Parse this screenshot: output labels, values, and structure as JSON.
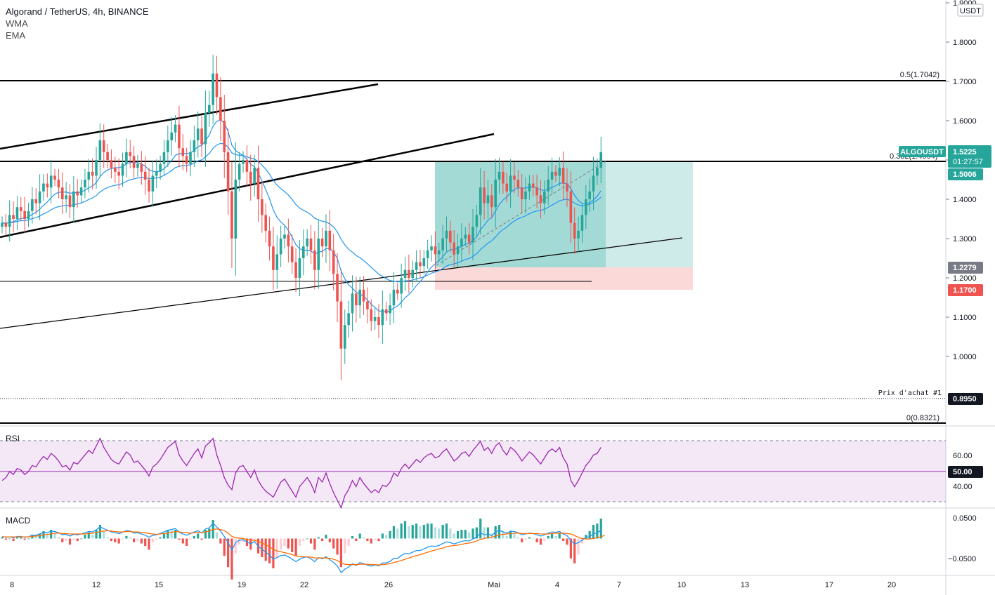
{
  "header": {
    "title": "Algorand / TetherUS, 4h, BINANCE",
    "indicators": [
      "WMA",
      "EMA"
    ],
    "currency": "USDT"
  },
  "price_axis": {
    "ticks": [
      "1.9000",
      "1.8000",
      "1.7000",
      "1.6000",
      "1.5000",
      "1.4000",
      "1.3000",
      "1.2000",
      "1.1000",
      "1.0000"
    ]
  },
  "time_axis": {
    "ticks": [
      "8",
      "12",
      "15",
      "19",
      "22",
      "26",
      "Mai",
      "4",
      "7",
      "10",
      "13",
      "17",
      "20"
    ]
  },
  "levels": {
    "fib_top_label": "0.5(1.7042)",
    "fib_mid_label": "0.382(1.4994)",
    "fib_bottom_label": "0(0.8321)",
    "buy_label": "Prix d'achat #1"
  },
  "tags": {
    "symbol": "ALGOUSDT",
    "last_price": "1.5225",
    "countdown": "01:27:57",
    "target": "1.5006",
    "entry": "1.2279",
    "stop": "1.1700",
    "buy_price": "0.8950",
    "rsi_mid": "50.00"
  },
  "rsi": {
    "title": "RSI",
    "ticks": [
      "60.00",
      "40.00"
    ]
  },
  "macd": {
    "title": "MACD",
    "ticks": [
      "0.0500",
      "−0.0500"
    ]
  },
  "colors": {
    "up": "#26a69a",
    "down": "#ef5350",
    "ma": "#2196f3",
    "rsi": "#9c27b0",
    "macd": "#2196f3",
    "signal": "#ff6d00"
  },
  "chart_data": {
    "type": "candlestick",
    "price_range": [
      0.81,
      1.91
    ],
    "closes": [
      1.34,
      1.33,
      1.36,
      1.35,
      1.38,
      1.37,
      1.35,
      1.37,
      1.4,
      1.39,
      1.42,
      1.44,
      1.43,
      1.46,
      1.45,
      1.43,
      1.4,
      1.41,
      1.38,
      1.42,
      1.41,
      1.43,
      1.45,
      1.47,
      1.46,
      1.5,
      1.55,
      1.52,
      1.5,
      1.48,
      1.47,
      1.46,
      1.49,
      1.52,
      1.51,
      1.48,
      1.49,
      1.47,
      1.45,
      1.42,
      1.46,
      1.47,
      1.49,
      1.52,
      1.55,
      1.57,
      1.59,
      1.53,
      1.51,
      1.49,
      1.52,
      1.55,
      1.58,
      1.54,
      1.62,
      1.64,
      1.72,
      1.66,
      1.6,
      1.52,
      1.42,
      1.3,
      1.45,
      1.49,
      1.5,
      1.47,
      1.44,
      1.48,
      1.4,
      1.36,
      1.32,
      1.28,
      1.22,
      1.26,
      1.3,
      1.31,
      1.28,
      1.24,
      1.2,
      1.25,
      1.28,
      1.3,
      1.27,
      1.22,
      1.3,
      1.28,
      1.32,
      1.27,
      1.21,
      1.14,
      1.02,
      1.08,
      1.11,
      1.16,
      1.13,
      1.17,
      1.14,
      1.12,
      1.09,
      1.1,
      1.08,
      1.12,
      1.11,
      1.13,
      1.17,
      1.16,
      1.2,
      1.22,
      1.2,
      1.22,
      1.24,
      1.23,
      1.25,
      1.27,
      1.28,
      1.26,
      1.27,
      1.3,
      1.32,
      1.29,
      1.26,
      1.28,
      1.3,
      1.31,
      1.29,
      1.33,
      1.36,
      1.43,
      1.39,
      1.41,
      1.38,
      1.45,
      1.47,
      1.44,
      1.42,
      1.46,
      1.45,
      1.43,
      1.4,
      1.42,
      1.44,
      1.43,
      1.41,
      1.39,
      1.42,
      1.45,
      1.47,
      1.46,
      1.48,
      1.44,
      1.42,
      1.34,
      1.3,
      1.32,
      1.36,
      1.4,
      1.42,
      1.46,
      1.48,
      1.52
    ],
    "rsi": [
      44,
      46,
      50,
      48,
      52,
      51,
      48,
      50,
      54,
      53,
      57,
      60,
      58,
      62,
      60,
      57,
      53,
      54,
      51,
      56,
      55,
      58,
      61,
      64,
      62,
      67,
      72,
      66,
      62,
      58,
      56,
      55,
      59,
      63,
      61,
      56,
      57,
      54,
      51,
      47,
      53,
      55,
      58,
      62,
      66,
      68,
      70,
      61,
      57,
      54,
      58,
      62,
      65,
      59,
      67,
      69,
      72,
      61,
      54,
      46,
      41,
      38,
      49,
      53,
      54,
      50,
      46,
      51,
      44,
      40,
      37,
      35,
      33,
      38,
      43,
      45,
      41,
      37,
      33,
      40,
      43,
      46,
      42,
      36,
      46,
      43,
      49,
      42,
      36,
      31,
      26,
      34,
      38,
      44,
      40,
      46,
      42,
      39,
      36,
      38,
      36,
      41,
      40,
      43,
      49,
      47,
      52,
      55,
      52,
      55,
      58,
      56,
      59,
      61,
      62,
      59,
      60,
      63,
      65,
      61,
      57,
      59,
      62,
      63,
      60,
      64,
      67,
      70,
      64,
      66,
      62,
      67,
      69,
      64,
      61,
      66,
      64,
      61,
      57,
      60,
      63,
      61,
      58,
      55,
      59,
      63,
      65,
      63,
      66,
      59,
      55,
      44,
      40,
      44,
      49,
      54,
      57,
      61,
      62,
      66
    ],
    "macd": [
      0.005,
      0.003,
      0.004,
      0.002,
      0.005,
      0.005,
      0.003,
      0.004,
      0.008,
      0.008,
      0.011,
      0.015,
      0.014,
      0.018,
      0.017,
      0.014,
      0.009,
      0.01,
      0.006,
      0.01,
      0.009,
      0.011,
      0.014,
      0.017,
      0.016,
      0.021,
      0.028,
      0.024,
      0.02,
      0.016,
      0.014,
      0.012,
      0.015,
      0.019,
      0.018,
      0.013,
      0.014,
      0.011,
      0.008,
      0.003,
      0.008,
      0.009,
      0.012,
      0.016,
      0.02,
      0.022,
      0.024,
      0.015,
      0.011,
      0.008,
      0.012,
      0.016,
      0.019,
      0.013,
      0.023,
      0.026,
      0.037,
      0.028,
      0.018,
      0.005,
      -0.01,
      -0.028,
      -0.01,
      -0.004,
      -0.003,
      -0.008,
      -0.013,
      -0.007,
      -0.019,
      -0.026,
      -0.033,
      -0.04,
      -0.05,
      -0.046,
      -0.041,
      -0.04,
      -0.044,
      -0.05,
      -0.056,
      -0.05,
      -0.046,
      -0.044,
      -0.049,
      -0.056,
      -0.046,
      -0.049,
      -0.044,
      -0.051,
      -0.058,
      -0.066,
      -0.082,
      -0.074,
      -0.069,
      -0.061,
      -0.065,
      -0.058,
      -0.061,
      -0.064,
      -0.067,
      -0.064,
      -0.066,
      -0.059,
      -0.059,
      -0.055,
      -0.048,
      -0.048,
      -0.041,
      -0.036,
      -0.037,
      -0.033,
      -0.029,
      -0.029,
      -0.025,
      -0.021,
      -0.018,
      -0.019,
      -0.017,
      -0.012,
      -0.008,
      -0.01,
      -0.013,
      -0.01,
      -0.007,
      -0.005,
      -0.006,
      -0.001,
      0.003,
      0.014,
      0.009,
      0.011,
      0.007,
      0.016,
      0.02,
      0.016,
      0.013,
      0.018,
      0.017,
      0.014,
      0.009,
      0.011,
      0.013,
      0.012,
      0.009,
      0.006,
      0.009,
      0.013,
      0.016,
      0.015,
      0.017,
      0.011,
      0.007,
      -0.005,
      -0.013,
      -0.01,
      -0.004,
      0.002,
      0.005,
      0.011,
      0.014,
      0.02
    ],
    "signal": [
      0.004,
      0.004,
      0.004,
      0.004,
      0.004,
      0.004,
      0.004,
      0.004,
      0.005,
      0.006,
      0.007,
      0.009,
      0.01,
      0.011,
      0.013,
      0.013,
      0.012,
      0.012,
      0.011,
      0.011,
      0.011,
      0.011,
      0.011,
      0.012,
      0.013,
      0.014,
      0.017,
      0.018,
      0.019,
      0.018,
      0.017,
      0.016,
      0.016,
      0.017,
      0.017,
      0.016,
      0.016,
      0.015,
      0.014,
      0.012,
      0.011,
      0.01,
      0.011,
      0.012,
      0.013,
      0.015,
      0.017,
      0.016,
      0.015,
      0.014,
      0.013,
      0.014,
      0.015,
      0.014,
      0.016,
      0.018,
      0.022,
      0.023,
      0.022,
      0.019,
      0.013,
      0.005,
      0.002,
      0.001,
      0.0,
      -0.002,
      -0.004,
      -0.004,
      -0.007,
      -0.011,
      -0.015,
      -0.02,
      -0.026,
      -0.03,
      -0.032,
      -0.034,
      -0.036,
      -0.039,
      -0.042,
      -0.044,
      -0.044,
      -0.044,
      -0.045,
      -0.047,
      -0.047,
      -0.047,
      -0.047,
      -0.048,
      -0.05,
      -0.053,
      -0.059,
      -0.062,
      -0.063,
      -0.063,
      -0.063,
      -0.062,
      -0.062,
      -0.062,
      -0.063,
      -0.063,
      -0.064,
      -0.063,
      -0.062,
      -0.061,
      -0.058,
      -0.056,
      -0.053,
      -0.05,
      -0.047,
      -0.044,
      -0.041,
      -0.039,
      -0.036,
      -0.033,
      -0.03,
      -0.028,
      -0.025,
      -0.023,
      -0.02,
      -0.018,
      -0.017,
      -0.016,
      -0.014,
      -0.012,
      -0.011,
      -0.009,
      -0.006,
      -0.002,
      0.0,
      0.002,
      0.003,
      0.006,
      0.009,
      0.01,
      0.011,
      0.012,
      0.013,
      0.013,
      0.012,
      0.012,
      0.012,
      0.012,
      0.012,
      0.011,
      0.011,
      0.011,
      0.012,
      0.013,
      0.013,
      0.013,
      0.012,
      0.011,
      0.007,
      0.003,
      0.0,
      -0.001,
      -0.001,
      0.0,
      0.002,
      0.004,
      0.008
    ]
  }
}
